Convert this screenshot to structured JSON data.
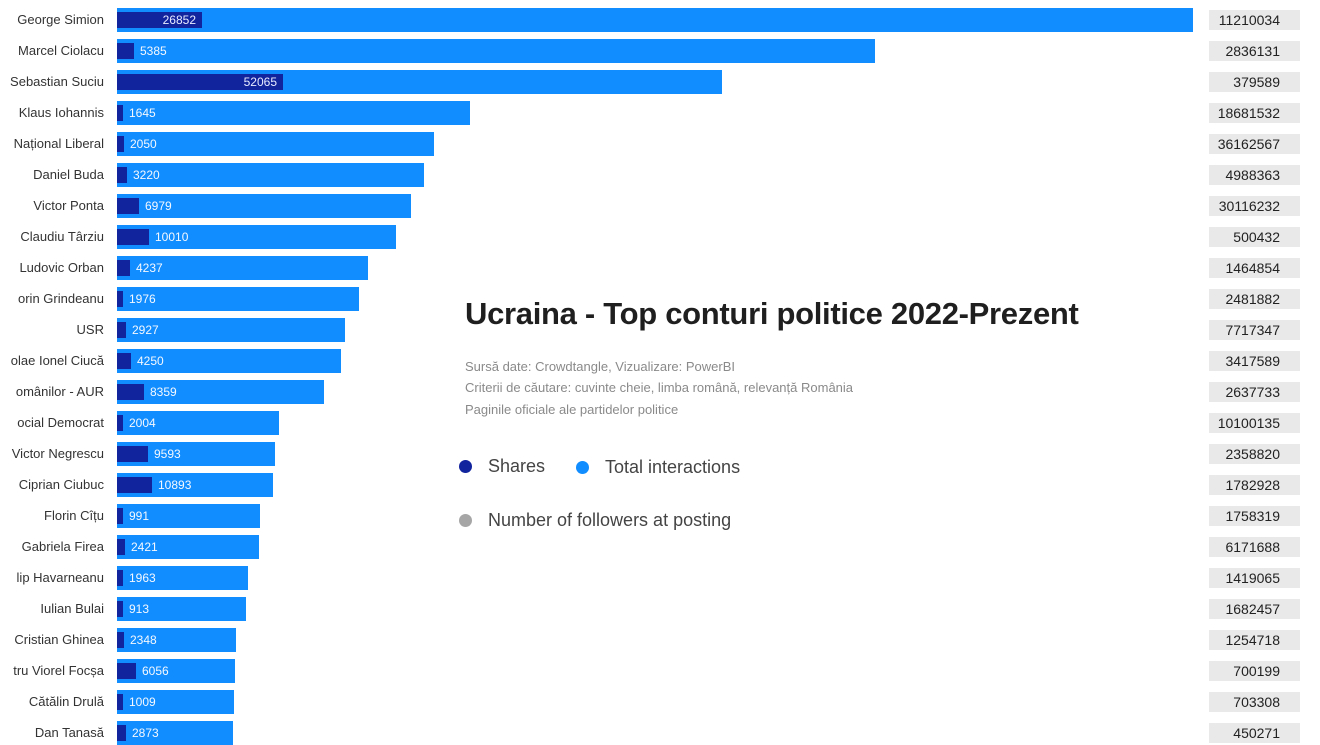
{
  "chart_data": {
    "type": "bar",
    "orientation": "horizontal",
    "title": "Ucraina - Top conturi politice 2022-Prezent",
    "notes": [
      "Sursă date: Crowdtangle, Vizualizare: PowerBI",
      "Criterii de căutare: cuvinte cheie, limba română, relevanță România",
      "Paginile oficiale ale partidelor politice"
    ],
    "legend": {
      "placement": "center",
      "items": [
        {
          "label": "Shares",
          "color": "#12239E"
        },
        {
          "label": "Total interactions",
          "color": "#118DFF"
        },
        {
          "label": "Number of followers at posting",
          "color": "#A6A6A6"
        }
      ]
    },
    "categories": [
      "George Simion",
      "Marcel Ciolacu",
      "Sebastian Suciu",
      "Klaus Iohannis",
      "Național Liberal",
      "Daniel Buda",
      "Victor Ponta",
      "Claudiu Târziu",
      "Ludovic Orban",
      "orin Grindeanu",
      "USR",
      "olae Ionel Ciucă",
      "omânilor - AUR",
      "ocial Democrat",
      "Victor Negrescu",
      "Ciprian Ciubuc",
      "Florin Cîțu",
      "Gabriela Firea",
      "lip Havarneanu",
      "Iulian Bulai",
      "Cristian Ghinea",
      "tru Viorel Focșa",
      "Cătălin Drulă",
      "Dan Tanasă"
    ],
    "series": [
      {
        "name": "Shares",
        "values": [
          26852,
          5385,
          52065,
          1645,
          2050,
          3220,
          6979,
          10010,
          4237,
          1976,
          2927,
          4250,
          8359,
          2004,
          9593,
          10893,
          991,
          2421,
          1963,
          913,
          2348,
          6056,
          1009,
          2873
        ]
      },
      {
        "name": "Total interactions",
        "values": [
          338000,
          238000,
          190000,
          111000,
          99500,
          96500,
          92500,
          87500,
          79000,
          76000,
          71500,
          70500,
          65000,
          51000,
          49500,
          49000,
          45000,
          44500,
          41000,
          40500,
          37500,
          37200,
          36800,
          36300
        ]
      },
      {
        "name": "Number of followers at posting",
        "values": [
          11210034,
          2836131,
          379589,
          18681532,
          36162567,
          4988363,
          30116232,
          500432,
          1464854,
          2481882,
          7717347,
          3417589,
          2637733,
          10100135,
          2358820,
          1782928,
          1758319,
          6171688,
          1419065,
          1682457,
          1254718,
          700199,
          703308,
          450271
        ]
      }
    ],
    "xlim": [
      0,
      338000
    ]
  }
}
